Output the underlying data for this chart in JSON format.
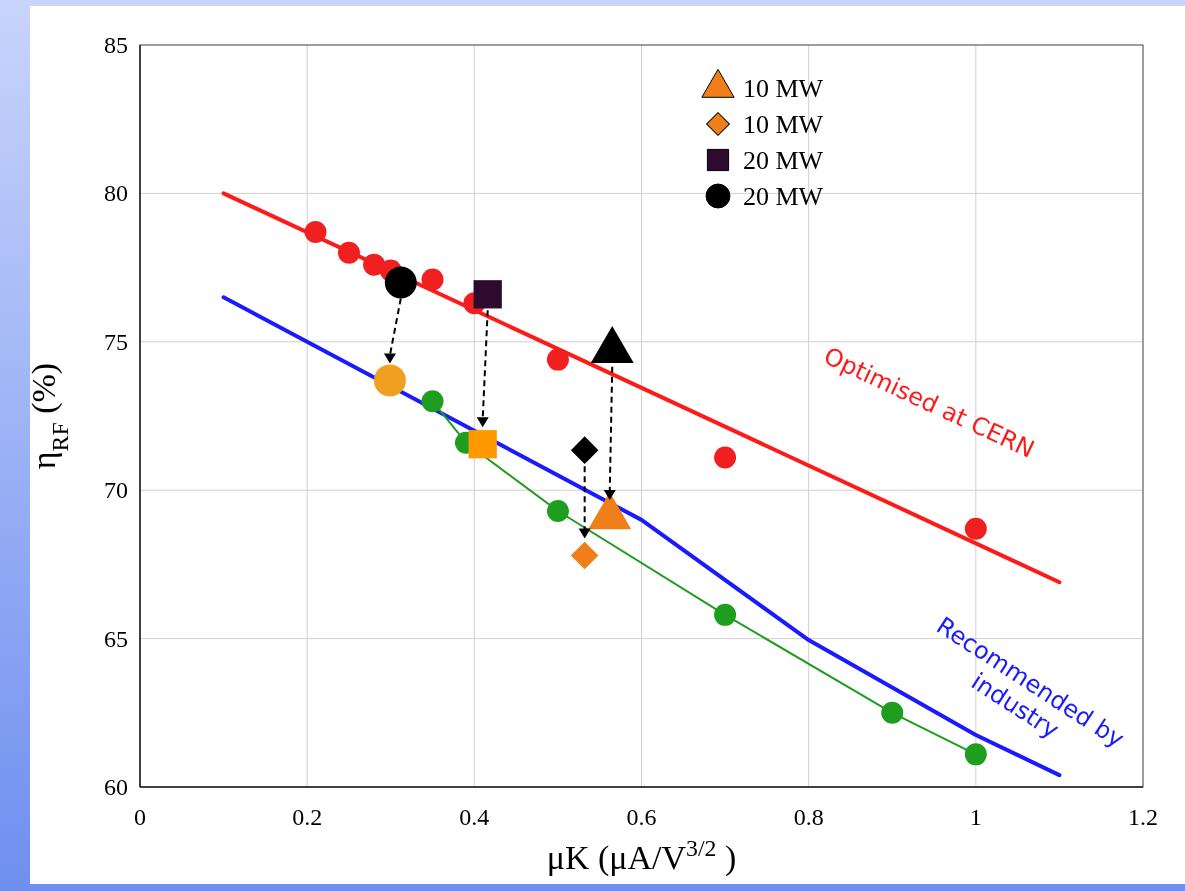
{
  "chart_data": {
    "type": "line",
    "xlabel": "μK (μA/V$^{3/2}$)",
    "ylabel": "η$_{RF}$ (%)",
    "xlim": [
      0,
      1.2
    ],
    "xticks": [
      0,
      0.2,
      0.4,
      0.6,
      0.8,
      1,
      1.2
    ],
    "ylim": [
      60,
      85
    ],
    "yticks": [
      60,
      65,
      70,
      75,
      80,
      85
    ],
    "grid": true,
    "legend": "top right",
    "series": [
      {
        "color": "#ff1a1a",
        "marker": "none",
        "x": [
          0.1,
          1.1
        ],
        "values": [
          80,
          66.9
        ]
      },
      {
        "color": "#1a1aff",
        "marker": "none",
        "x": [
          0.1,
          0.4,
          0.6,
          0.8,
          1.0,
          1.1
        ],
        "values": [
          76.5,
          72.0,
          69.0,
          64.95,
          61.75,
          60.4
        ]
      },
      {
        "type": "scatter",
        "color": "#f02020",
        "marker": "circle",
        "x": [
          0.21,
          0.25,
          0.28,
          0.3,
          0.35,
          0.4,
          0.5,
          0.7,
          1.0
        ],
        "values": [
          78.7,
          78.0,
          77.6,
          77.4,
          77.1,
          76.3,
          74.4,
          71.1,
          68.7
        ]
      },
      {
        "color": "#1e9e1e",
        "marker": "circle",
        "x": [
          0.35,
          0.39,
          0.5,
          0.7,
          0.9,
          1.0
        ],
        "values": [
          73.0,
          71.6,
          69.3,
          65.8,
          62.5,
          61.1
        ]
      },
      {
        "type": "scatter",
        "color": "#000000",
        "marker": "triangle",
        "x": [
          0.565
        ],
        "values": [
          74.7
        ]
      },
      {
        "type": "scatter",
        "name": "10 MW",
        "color": "#f07f1a",
        "marker": "triangle",
        "x": [
          0.562
        ],
        "values": [
          69.1
        ]
      },
      {
        "type": "scatter",
        "color": "#000000",
        "marker": "diamond",
        "x": [
          0.532
        ],
        "values": [
          71.35
        ]
      },
      {
        "type": "scatter",
        "name": "10 MW",
        "color": "#f07f1a",
        "marker": "diamond",
        "x": [
          0.532
        ],
        "values": [
          67.8
        ]
      },
      {
        "type": "scatter",
        "name": "20 MW",
        "color": "#2e0a2e",
        "marker": "square",
        "x": [
          0.416
        ],
        "values": [
          76.6
        ]
      },
      {
        "type": "scatter",
        "color": "#ff9900",
        "marker": "square",
        "x": [
          0.41
        ],
        "values": [
          71.55
        ]
      },
      {
        "type": "scatter",
        "name": "20 MW",
        "color": "#000000",
        "marker": "circle",
        "x": [
          0.312
        ],
        "values": [
          77.0
        ]
      },
      {
        "type": "scatter",
        "color": "#f0a020",
        "marker": "circle",
        "x": [
          0.299
        ],
        "values": [
          73.7
        ]
      }
    ],
    "annotations": [
      "Optimised at CERN",
      "Recommended by\nindustry"
    ]
  }
}
